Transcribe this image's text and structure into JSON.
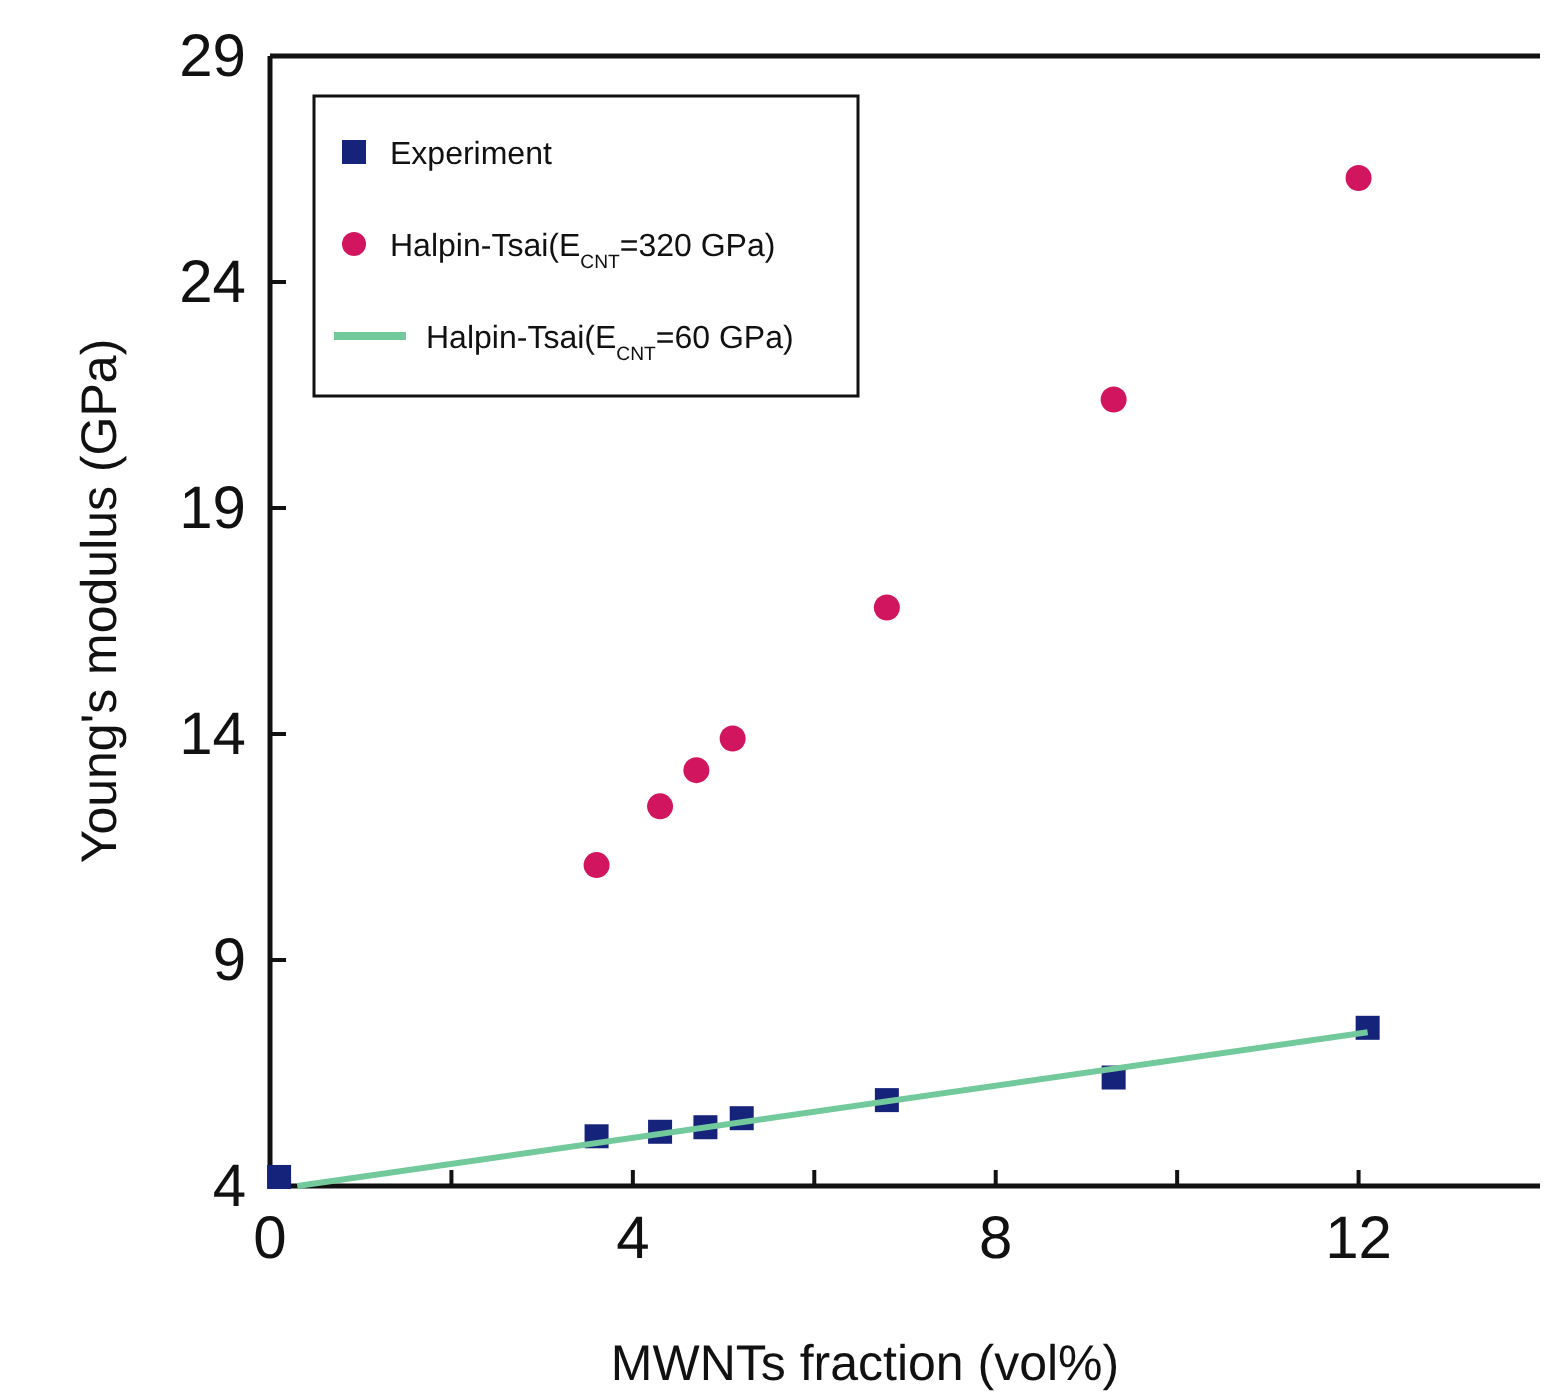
{
  "chart_data": {
    "type": "scatter",
    "xlabel": "MWNTs fraction (vol%)",
    "ylabel": "Young's modulus (GPa)",
    "xlim": [
      0,
      14
    ],
    "xticks": [
      0,
      {
        "value": 2,
        "label": null
      },
      4,
      {
        "value": 6,
        "label": null
      },
      8,
      {
        "value": 10,
        "label": null
      },
      12
    ],
    "ylim": [
      4,
      29
    ],
    "yticks": [
      4,
      9,
      14,
      19,
      24,
      29
    ],
    "grid": false,
    "legend": "top left",
    "series": [
      {
        "name": "Experiment",
        "marker": "square",
        "color": "#16237a",
        "x": [
          0.1,
          3.6,
          4.3,
          4.8,
          5.2,
          6.8,
          9.3,
          12.1
        ],
        "values": [
          4.2,
          5.1,
          5.2,
          5.3,
          5.5,
          5.9,
          6.4,
          7.5
        ]
      },
      {
        "name": "Halpin-Tsai(E$_{CNT}$=320 GPa)",
        "marker": "circle",
        "color": "#d2155f",
        "x": [
          3.6,
          4.3,
          4.7,
          5.1,
          6.8,
          9.3,
          12.0
        ],
        "values": [
          11.1,
          12.4,
          13.2,
          13.9,
          16.8,
          21.4,
          26.3
        ]
      },
      {
        "name": "Halpin-Tsai(E$_{CNT}$=60 GPa)",
        "type": "line",
        "marker": "none",
        "line_style": "solid",
        "color": "#72c99c",
        "x": [
          0.3,
          12.1
        ],
        "values": [
          4.0,
          7.4
        ]
      }
    ]
  }
}
